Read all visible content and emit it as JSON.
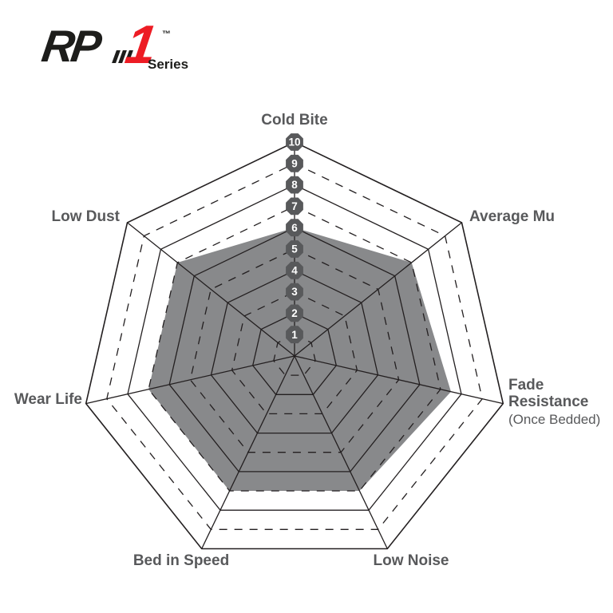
{
  "logo": {
    "rp": "RP",
    "one": "1",
    "tm": "™",
    "series": "Series"
  },
  "colors": {
    "brand_red": "#ED1C24",
    "ink": "#231f20",
    "fill_gray": "#88898b",
    "badge_gray": "#58595b",
    "badge_text": "#ffffff",
    "label_gray": "#58595b"
  },
  "chart_data": {
    "type": "radar",
    "shape": "heptagon",
    "categories": [
      "Cold Bite",
      "Average Mu",
      "Fade Resistance",
      "Low Noise",
      "Bed in Speed",
      "Wear Life",
      "Low Dust"
    ],
    "category_notes": [
      "",
      "",
      "(Once Bedded)",
      "",
      "",
      "",
      ""
    ],
    "series": [
      {
        "name": "RP-1",
        "values": [
          6,
          7,
          7.5,
          7,
          7,
          7,
          7
        ]
      }
    ],
    "scale": {
      "min": 0,
      "max": 10,
      "tick_labels": [
        "1",
        "2",
        "3",
        "4",
        "5",
        "6",
        "7",
        "8",
        "9",
        "10"
      ]
    },
    "grid": {
      "rings": 10,
      "even_ring_style": "solid",
      "odd_ring_style": "dashed",
      "legend": "none"
    }
  }
}
